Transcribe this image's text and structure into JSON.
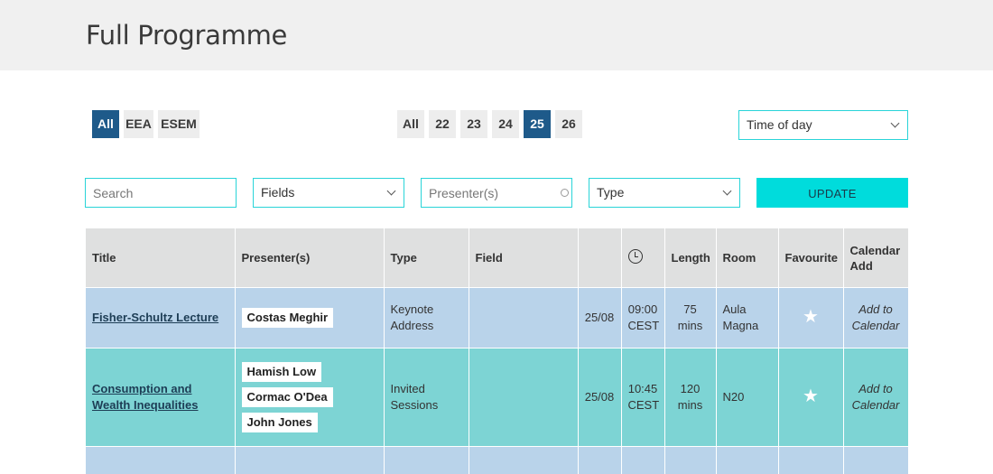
{
  "page": {
    "title": "Full Programme"
  },
  "filters": {
    "associations": [
      {
        "label": "All",
        "active": true
      },
      {
        "label": "EEA",
        "active": false
      },
      {
        "label": "ESEM",
        "active": false
      }
    ],
    "days": [
      {
        "label": "All",
        "active": false
      },
      {
        "label": "22",
        "active": false
      },
      {
        "label": "23",
        "active": false
      },
      {
        "label": "24",
        "active": false
      },
      {
        "label": "25",
        "active": true
      },
      {
        "label": "26",
        "active": false
      }
    ],
    "time_of_day": {
      "value": "Time of day"
    },
    "search": {
      "placeholder": "Search"
    },
    "fields": {
      "value": "Fields"
    },
    "presenters": {
      "placeholder": "Presenter(s)"
    },
    "type": {
      "value": "Type"
    },
    "update_label": "UPDATE"
  },
  "table": {
    "headers": {
      "title": "Title",
      "presenters": "Presenter(s)",
      "type": "Type",
      "field": "Field",
      "date": "",
      "time": "clock-icon",
      "length": "Length",
      "room": "Room",
      "favourite": "Favourite",
      "calendar": "Calendar Add"
    },
    "rows": [
      {
        "title": "Fisher-Schultz Lecture",
        "presenters": [
          "Costas Meghir"
        ],
        "type": "Keynote Address",
        "field": "",
        "date": "25/08",
        "time": "09:00 CEST",
        "length": "75 mins",
        "room": "Aula Magna",
        "favourite": "★",
        "calendar": "Add to Calendar",
        "color": "#b9d3ea"
      },
      {
        "title": "Consumption and Wealth Inequalities",
        "presenters": [
          "Hamish Low",
          "Cormac O'Dea",
          "John Jones"
        ],
        "type": "Invited Sessions",
        "field": "",
        "date": "25/08",
        "time": "10:45 CEST",
        "length": "120 mins",
        "room": "N20",
        "favourite": "★",
        "calendar": "Add to Calendar",
        "color": "#7dd4d4"
      }
    ]
  },
  "colors": {
    "accent": "#00dcdc",
    "active_tab": "#1e5a8a",
    "border": "#29d4d8"
  }
}
